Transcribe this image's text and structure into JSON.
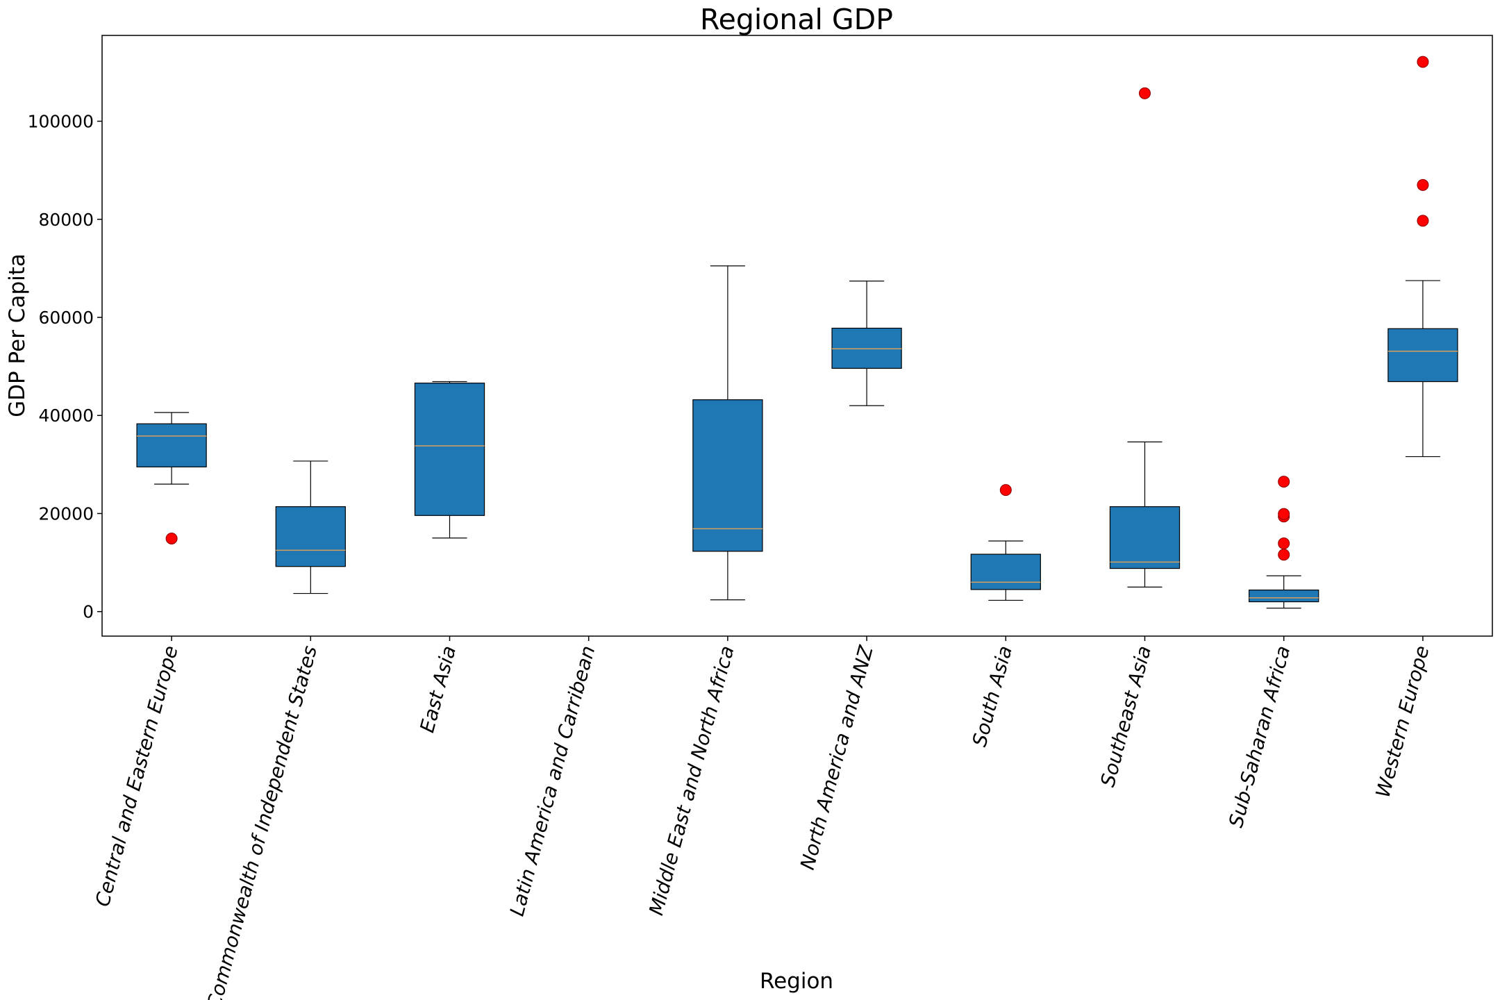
{
  "chart_data": {
    "type": "box",
    "title": "Regional GDP",
    "xlabel": "Region",
    "ylabel": "GDP Per Capita",
    "ylim": [
      -5000,
      117500
    ],
    "yticks": [
      0,
      20000,
      40000,
      60000,
      80000,
      100000
    ],
    "grid": false,
    "colors": {
      "box_fill": "#1f77b4",
      "median": "#d8a05a",
      "outlier": "#ff0000",
      "outlier_edge": "#8b0000"
    },
    "categories": [
      "Central and Eastern Europe",
      "Commonwealth of Independent States",
      "East Asia",
      "Latin America and Carribean",
      "Middle East and North Africa",
      "North America and ANZ",
      "South Asia",
      "Southeast Asia",
      "Sub-Saharan Africa",
      "Western Europe"
    ],
    "boxes": [
      {
        "whisker_low": 26000,
        "q1": 29500,
        "median": 35800,
        "q3": 38300,
        "whisker_high": 40600,
        "outliers": [
          14900
        ]
      },
      {
        "whisker_low": 3700,
        "q1": 9200,
        "median": 12500,
        "q3": 21400,
        "whisker_high": 30700,
        "outliers": []
      },
      {
        "whisker_low": 15000,
        "q1": 19600,
        "median": 33800,
        "q3": 46600,
        "whisker_high": 46900,
        "outliers": []
      },
      null,
      {
        "whisker_low": 2400,
        "q1": 12300,
        "median": 16900,
        "q3": 43200,
        "whisker_high": 70500,
        "outliers": []
      },
      {
        "whisker_low": 42000,
        "q1": 49600,
        "median": 53600,
        "q3": 57800,
        "whisker_high": 67400,
        "outliers": []
      },
      {
        "whisker_low": 2300,
        "q1": 4500,
        "median": 6000,
        "q3": 11700,
        "whisker_high": 14400,
        "outliers": [
          24800
        ]
      },
      {
        "whisker_low": 5000,
        "q1": 8800,
        "median": 10100,
        "q3": 21400,
        "whisker_high": 34600,
        "outliers": [
          105700
        ]
      },
      {
        "whisker_low": 700,
        "q1": 2000,
        "median": 2800,
        "q3": 4400,
        "whisker_high": 7300,
        "outliers": [
          11600,
          13900,
          19400,
          19900,
          26500
        ]
      },
      {
        "whisker_low": 31600,
        "q1": 46900,
        "median": 53100,
        "q3": 57700,
        "whisker_high": 67500,
        "outliers": [
          79700,
          87000,
          112100
        ]
      }
    ]
  }
}
